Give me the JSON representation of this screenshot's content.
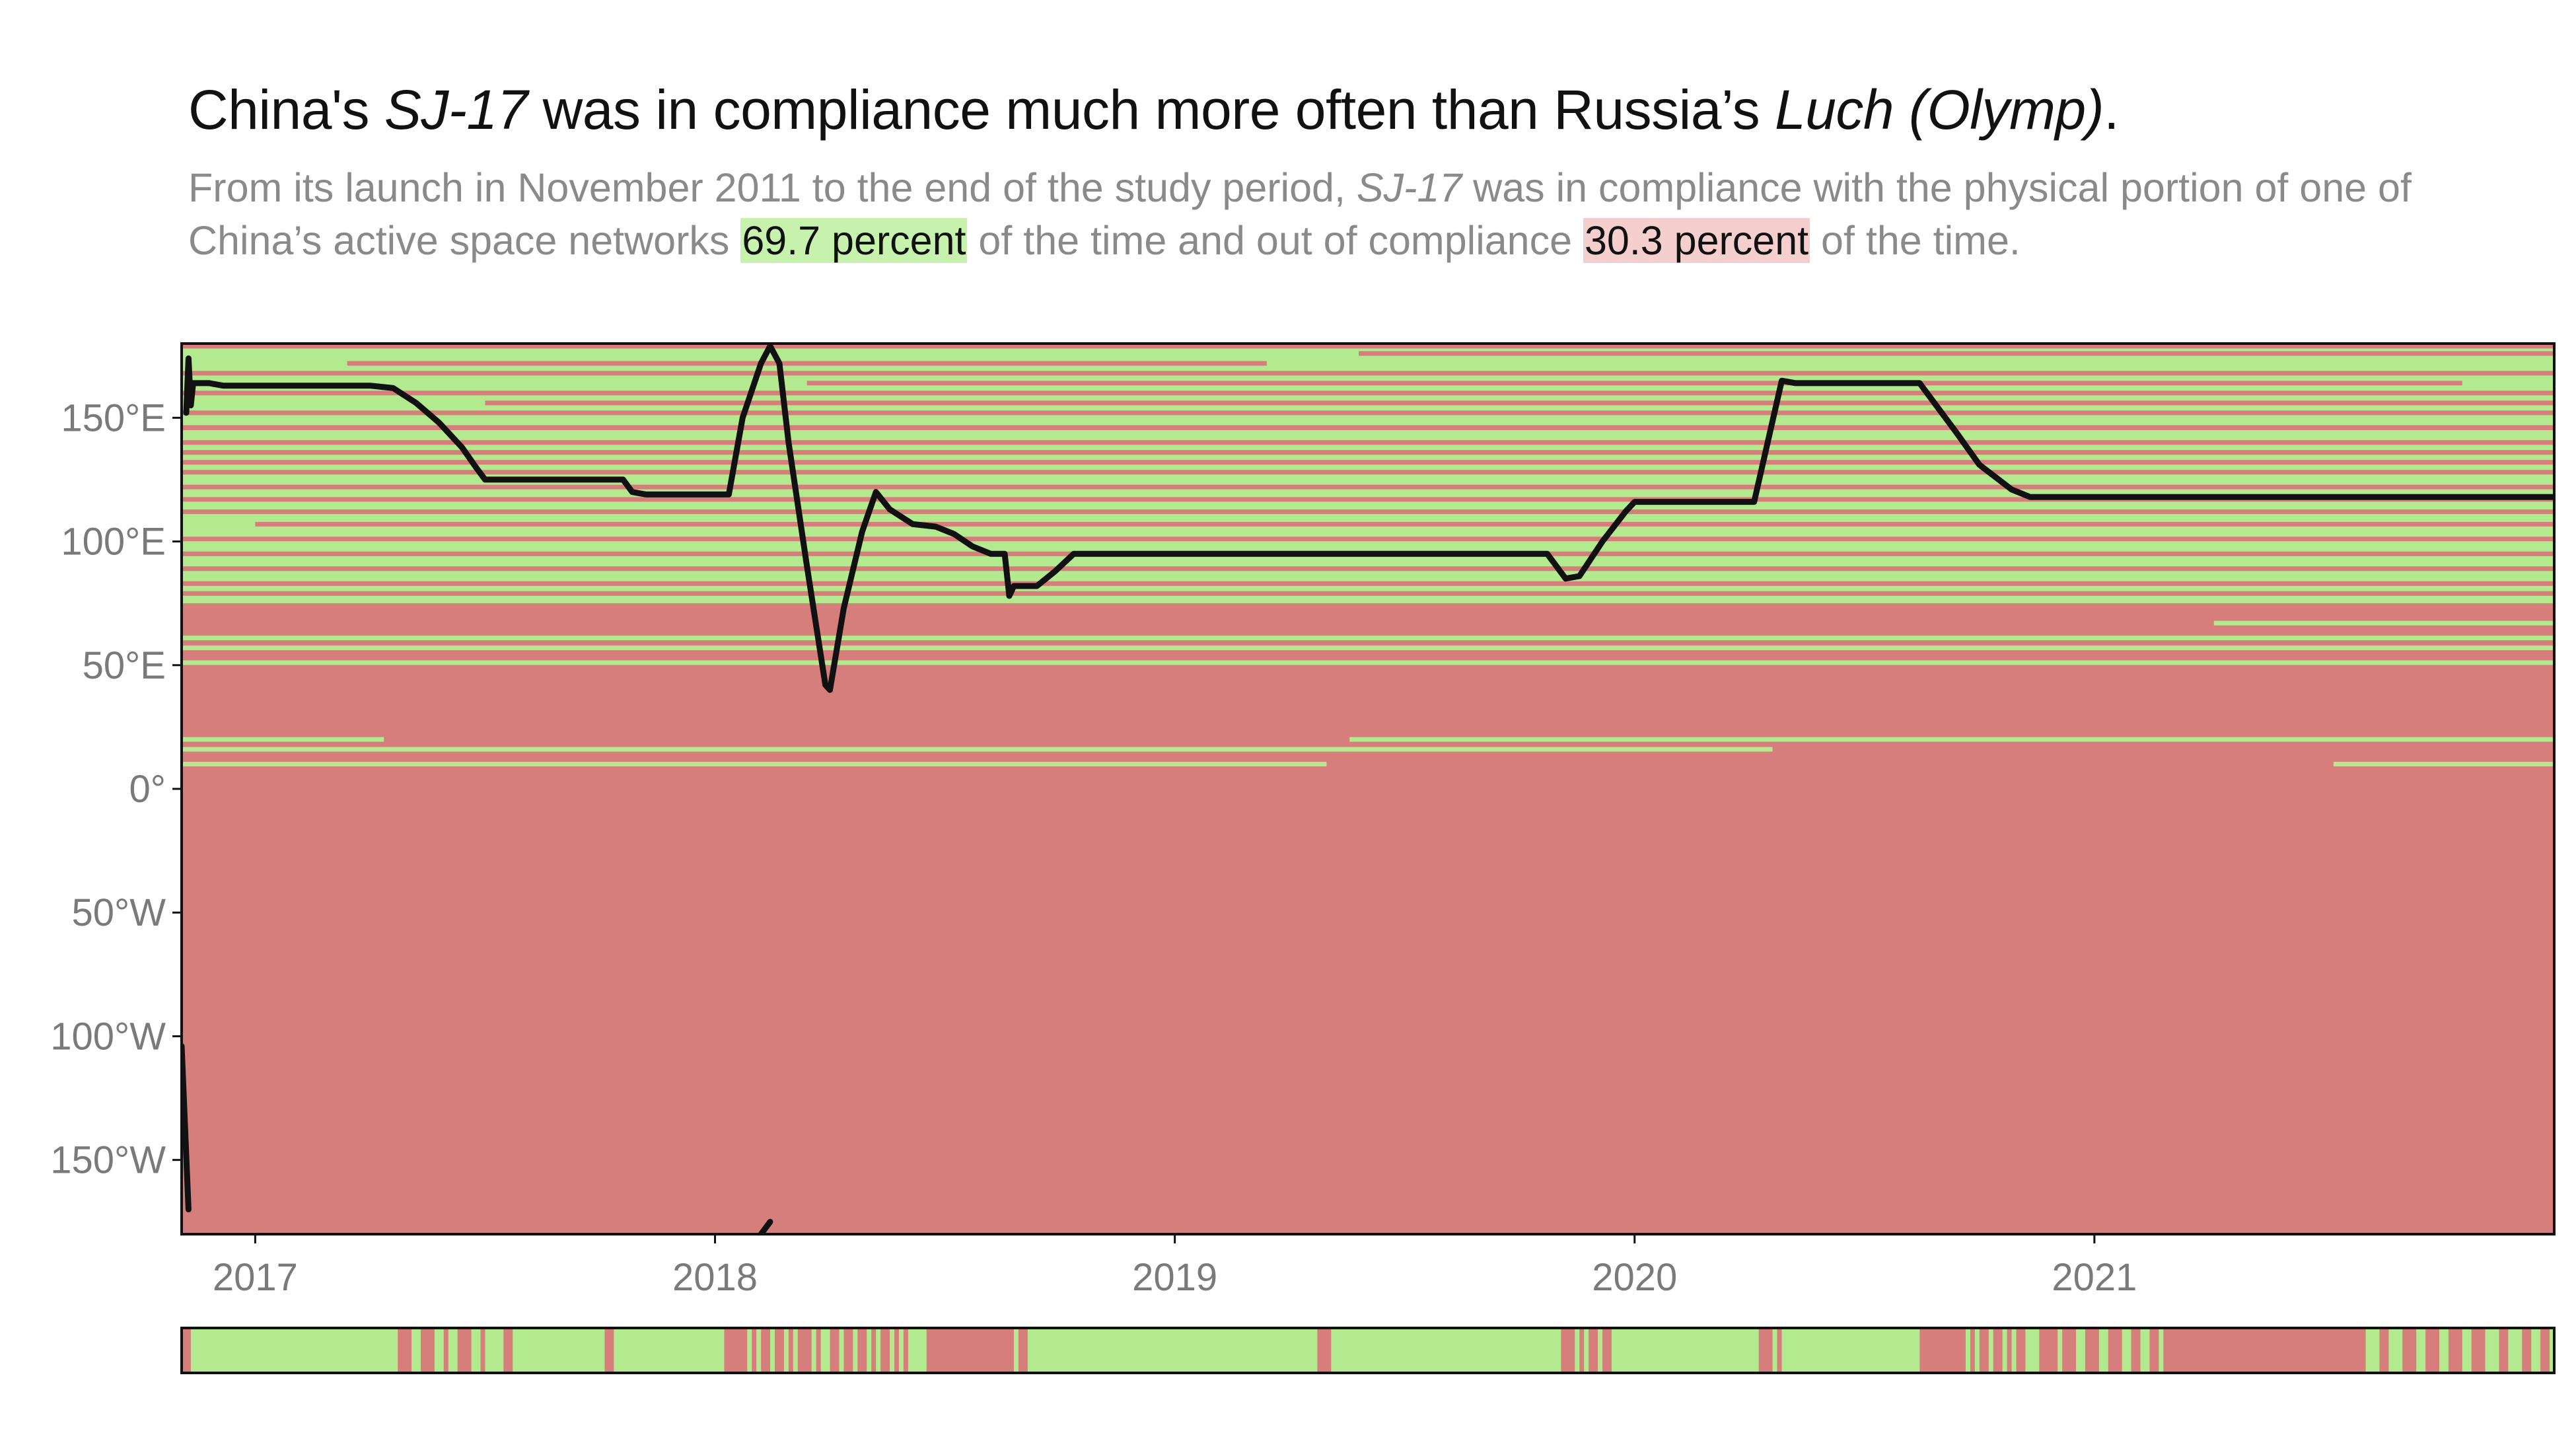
{
  "title": {
    "pre": "China's ",
    "sat1": "SJ-17",
    "mid": " was in compliance much more often than Russia’s ",
    "sat2": "Luch (Olymp)",
    "post": "."
  },
  "subtitle": {
    "part1": "From its launch in November 2011 to the end of the study period, ",
    "sat": "SJ-17",
    "part2": " was in compliance with the physical portion of one of China’s active space networks ",
    "green_pct": "69.7 percent",
    "part3": " of the time and out of compliance ",
    "red_pct": "30.3 percent",
    "part4": " of the time."
  },
  "colors": {
    "compliant": "#b3ea8f",
    "noncompliant": "#d67e7c",
    "track": "#111111",
    "highlight_green": "#c6f2ae",
    "highlight_red": "#f4cfcd"
  },
  "chart_data": {
    "type": "heatmap",
    "x_range": [
      2016.84,
      2022.0
    ],
    "y_range": [
      -180,
      180
    ],
    "x_ticks": [
      {
        "value": 2017,
        "label": "2017"
      },
      {
        "value": 2018,
        "label": "2018"
      },
      {
        "value": 2019,
        "label": "2019"
      },
      {
        "value": 2020,
        "label": "2020"
      },
      {
        "value": 2021,
        "label": "2021"
      }
    ],
    "y_ticks": [
      {
        "value": 150,
        "label": "150°E"
      },
      {
        "value": 100,
        "label": "100°E"
      },
      {
        "value": 50,
        "label": "50°E"
      },
      {
        "value": 0,
        "label": "0°"
      },
      {
        "value": -50,
        "label": "50°W"
      },
      {
        "value": -100,
        "label": "100°W"
      },
      {
        "value": -150,
        "label": "150°W"
      }
    ],
    "compliant_bands": [
      {
        "lon_min": 75,
        "lon_max": 145,
        "x_start": 2016.84,
        "x_end": 2022.0
      },
      {
        "lon_min": 147,
        "lon_max": 178,
        "x_start": 2016.84,
        "x_end": 2022.0
      }
    ],
    "noncompliant_lines": [
      {
        "lon": 176,
        "x_start": 2019.4,
        "x_end": 2022.0
      },
      {
        "lon": 172,
        "x_start": 2017.2,
        "x_end": 2019.2
      },
      {
        "lon": 168,
        "x_start": 2016.84,
        "x_end": 2022.0
      },
      {
        "lon": 164,
        "x_start": 2018.2,
        "x_end": 2021.8
      },
      {
        "lon": 160,
        "x_start": 2016.84,
        "x_end": 2022.0
      },
      {
        "lon": 156,
        "x_start": 2017.5,
        "x_end": 2022.0
      },
      {
        "lon": 152,
        "x_start": 2016.84,
        "x_end": 2022.0
      },
      {
        "lon": 140,
        "x_start": 2016.84,
        "x_end": 2022.0
      },
      {
        "lon": 136,
        "x_start": 2016.84,
        "x_end": 2022.0
      },
      {
        "lon": 132,
        "x_start": 2016.84,
        "x_end": 2022.0
      },
      {
        "lon": 128,
        "x_start": 2016.84,
        "x_end": 2022.0
      },
      {
        "lon": 122,
        "x_start": 2016.84,
        "x_end": 2022.0
      },
      {
        "lon": 117,
        "x_start": 2016.84,
        "x_end": 2022.0
      },
      {
        "lon": 112,
        "x_start": 2016.84,
        "x_end": 2022.0
      },
      {
        "lon": 107,
        "x_start": 2017.0,
        "x_end": 2022.0
      },
      {
        "lon": 101,
        "x_start": 2016.84,
        "x_end": 2022.0
      },
      {
        "lon": 95,
        "x_start": 2016.84,
        "x_end": 2022.0
      },
      {
        "lon": 89,
        "x_start": 2016.84,
        "x_end": 2022.0
      },
      {
        "lon": 83,
        "x_start": 2016.84,
        "x_end": 2022.0
      },
      {
        "lon": 79,
        "x_start": 2016.84,
        "x_end": 2022.0
      }
    ],
    "compliant_lines": [
      {
        "lon": 67,
        "x_start": 2021.26,
        "x_end": 2022.0
      },
      {
        "lon": 61,
        "x_start": 2016.84,
        "x_end": 2022.0
      },
      {
        "lon": 57,
        "x_start": 2016.84,
        "x_end": 2022.0
      },
      {
        "lon": 51,
        "x_start": 2016.84,
        "x_end": 2022.0
      },
      {
        "lon": 20,
        "x_start": 2016.84,
        "x_end": 2017.28
      },
      {
        "lon": 20,
        "x_start": 2019.38,
        "x_end": 2022.0
      },
      {
        "lon": 16,
        "x_start": 2016.84,
        "x_end": 2020.3
      },
      {
        "lon": 10,
        "x_start": 2016.84,
        "x_end": 2019.33
      },
      {
        "lon": 10,
        "x_start": 2021.52,
        "x_end": 2022.0
      }
    ],
    "track_segments": [
      [
        [
          2016.84,
          -104
        ],
        [
          2016.855,
          -170
        ]
      ],
      [
        [
          2016.85,
          152
        ],
        [
          2016.855,
          174
        ],
        [
          2016.86,
          155
        ],
        [
          2016.865,
          164
        ],
        [
          2016.9,
          164
        ],
        [
          2016.93,
          163
        ],
        [
          2017.1,
          163
        ],
        [
          2017.25,
          163
        ],
        [
          2017.3,
          162
        ],
        [
          2017.35,
          156
        ],
        [
          2017.4,
          148
        ],
        [
          2017.45,
          138
        ],
        [
          2017.48,
          130
        ],
        [
          2017.5,
          125
        ],
        [
          2017.6,
          125
        ],
        [
          2017.75,
          125
        ],
        [
          2017.8,
          125
        ],
        [
          2017.82,
          120
        ],
        [
          2017.85,
          119
        ],
        [
          2018.0,
          119
        ],
        [
          2018.03,
          119
        ],
        [
          2018.06,
          150
        ],
        [
          2018.1,
          172
        ],
        [
          2018.12,
          179
        ],
        [
          2018.14,
          172
        ],
        [
          2018.16,
          140
        ],
        [
          2018.2,
          90
        ],
        [
          2018.24,
          42
        ],
        [
          2018.25,
          40
        ],
        [
          2018.28,
          73
        ],
        [
          2018.32,
          104
        ],
        [
          2018.35,
          120
        ],
        [
          2018.38,
          113
        ],
        [
          2018.43,
          107
        ],
        [
          2018.48,
          106
        ],
        [
          2018.52,
          103
        ],
        [
          2018.56,
          98
        ],
        [
          2018.6,
          95
        ],
        [
          2018.63,
          95
        ],
        [
          2018.64,
          78
        ],
        [
          2018.65,
          82
        ],
        [
          2018.7,
          82
        ],
        [
          2018.74,
          88
        ],
        [
          2018.78,
          95
        ],
        [
          2019.0,
          95
        ],
        [
          2019.3,
          95
        ],
        [
          2019.6,
          95
        ],
        [
          2019.81,
          95
        ],
        [
          2019.85,
          85
        ],
        [
          2019.88,
          86
        ],
        [
          2019.93,
          100
        ],
        [
          2019.98,
          112
        ],
        [
          2020.0,
          116
        ],
        [
          2020.05,
          116
        ],
        [
          2020.26,
          116
        ],
        [
          2020.32,
          165
        ],
        [
          2020.35,
          164
        ],
        [
          2020.55,
          164
        ],
        [
          2020.62,
          164
        ],
        [
          2020.7,
          144
        ],
        [
          2020.75,
          131
        ],
        [
          2020.82,
          121
        ],
        [
          2020.86,
          118
        ],
        [
          2021.0,
          118
        ],
        [
          2021.5,
          118
        ],
        [
          2022.0,
          118
        ]
      ],
      [
        [
          2018.1,
          -180
        ],
        [
          2018.12,
          -175
        ]
      ]
    ],
    "compliance_strip": [
      {
        "x_start": 2016.84,
        "x_end": 2016.86,
        "compliant": false
      },
      {
        "x_start": 2017.31,
        "x_end": 2017.34,
        "compliant": false
      },
      {
        "x_start": 2017.36,
        "x_end": 2017.39,
        "compliant": false
      },
      {
        "x_start": 2017.41,
        "x_end": 2017.42,
        "compliant": false
      },
      {
        "x_start": 2017.44,
        "x_end": 2017.47,
        "compliant": false
      },
      {
        "x_start": 2017.49,
        "x_end": 2017.5,
        "compliant": false
      },
      {
        "x_start": 2017.54,
        "x_end": 2017.56,
        "compliant": false
      },
      {
        "x_start": 2017.76,
        "x_end": 2017.78,
        "compliant": false
      },
      {
        "x_start": 2018.02,
        "x_end": 2018.07,
        "compliant": false
      },
      {
        "x_start": 2018.08,
        "x_end": 2018.09,
        "compliant": false
      },
      {
        "x_start": 2018.1,
        "x_end": 2018.12,
        "compliant": false
      },
      {
        "x_start": 2018.13,
        "x_end": 2018.15,
        "compliant": false
      },
      {
        "x_start": 2018.16,
        "x_end": 2018.17,
        "compliant": false
      },
      {
        "x_start": 2018.18,
        "x_end": 2018.21,
        "compliant": false
      },
      {
        "x_start": 2018.22,
        "x_end": 2018.23,
        "compliant": false
      },
      {
        "x_start": 2018.25,
        "x_end": 2018.27,
        "compliant": false
      },
      {
        "x_start": 2018.28,
        "x_end": 2018.3,
        "compliant": false
      },
      {
        "x_start": 2018.31,
        "x_end": 2018.33,
        "compliant": false
      },
      {
        "x_start": 2018.34,
        "x_end": 2018.35,
        "compliant": false
      },
      {
        "x_start": 2018.36,
        "x_end": 2018.38,
        "compliant": false
      },
      {
        "x_start": 2018.39,
        "x_end": 2018.4,
        "compliant": false
      },
      {
        "x_start": 2018.41,
        "x_end": 2018.42,
        "compliant": false
      },
      {
        "x_start": 2018.46,
        "x_end": 2018.65,
        "compliant": false
      },
      {
        "x_start": 2018.66,
        "x_end": 2018.68,
        "compliant": false
      },
      {
        "x_start": 2019.31,
        "x_end": 2019.34,
        "compliant": false
      },
      {
        "x_start": 2019.84,
        "x_end": 2019.87,
        "compliant": false
      },
      {
        "x_start": 2019.88,
        "x_end": 2019.89,
        "compliant": false
      },
      {
        "x_start": 2019.9,
        "x_end": 2019.92,
        "compliant": false
      },
      {
        "x_start": 2019.93,
        "x_end": 2019.95,
        "compliant": false
      },
      {
        "x_start": 2020.27,
        "x_end": 2020.3,
        "compliant": false
      },
      {
        "x_start": 2020.31,
        "x_end": 2020.32,
        "compliant": false
      },
      {
        "x_start": 2020.62,
        "x_end": 2020.72,
        "compliant": false
      },
      {
        "x_start": 2020.73,
        "x_end": 2020.74,
        "compliant": false
      },
      {
        "x_start": 2020.75,
        "x_end": 2020.77,
        "compliant": false
      },
      {
        "x_start": 2020.78,
        "x_end": 2020.8,
        "compliant": false
      },
      {
        "x_start": 2020.81,
        "x_end": 2020.82,
        "compliant": false
      },
      {
        "x_start": 2020.83,
        "x_end": 2020.85,
        "compliant": false
      },
      {
        "x_start": 2020.88,
        "x_end": 2020.92,
        "compliant": false
      },
      {
        "x_start": 2020.93,
        "x_end": 2020.96,
        "compliant": false
      },
      {
        "x_start": 2020.98,
        "x_end": 2021.01,
        "compliant": false
      },
      {
        "x_start": 2021.03,
        "x_end": 2021.06,
        "compliant": false
      },
      {
        "x_start": 2021.08,
        "x_end": 2021.1,
        "compliant": false
      },
      {
        "x_start": 2021.12,
        "x_end": 2021.14,
        "compliant": false
      },
      {
        "x_start": 2021.15,
        "x_end": 2021.59,
        "compliant": false
      },
      {
        "x_start": 2021.62,
        "x_end": 2021.64,
        "compliant": false
      },
      {
        "x_start": 2021.67,
        "x_end": 2021.7,
        "compliant": false
      },
      {
        "x_start": 2021.72,
        "x_end": 2021.75,
        "compliant": false
      },
      {
        "x_start": 2021.77,
        "x_end": 2021.8,
        "compliant": false
      },
      {
        "x_start": 2021.82,
        "x_end": 2021.85,
        "compliant": false
      },
      {
        "x_start": 2021.88,
        "x_end": 2021.9,
        "compliant": false
      },
      {
        "x_start": 2021.93,
        "x_end": 2021.95,
        "compliant": false
      },
      {
        "x_start": 2021.97,
        "x_end": 2021.99,
        "compliant": false
      }
    ]
  }
}
